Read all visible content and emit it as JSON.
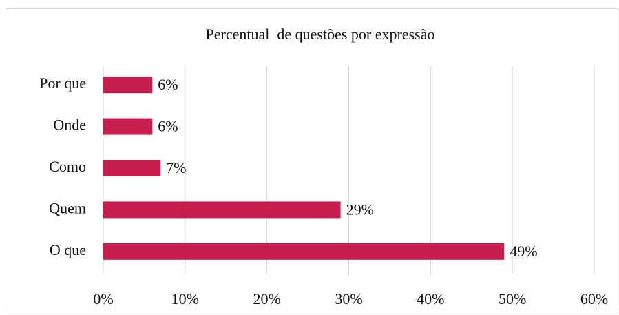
{
  "chart_data": {
    "type": "barh",
    "title": "Percentual  de questões por expressão",
    "categories": [
      "Por que",
      "Onde",
      "Como",
      "Quem",
      "O que"
    ],
    "values": [
      6,
      6,
      7,
      29,
      49
    ],
    "value_labels": [
      "6%",
      "6%",
      "7%",
      "29%",
      "49%"
    ],
    "color": "#c81e4e",
    "xlim": [
      0,
      60
    ],
    "xticks": [
      {
        "value": 0,
        "label": "0%"
      },
      {
        "value": 10,
        "label": "10%"
      },
      {
        "value": 20,
        "label": "20%"
      },
      {
        "value": 30,
        "label": "30%"
      },
      {
        "value": 40,
        "label": "40%"
      },
      {
        "value": 50,
        "label": "50%"
      },
      {
        "value": 60,
        "label": "60%"
      }
    ],
    "grid": true
  }
}
